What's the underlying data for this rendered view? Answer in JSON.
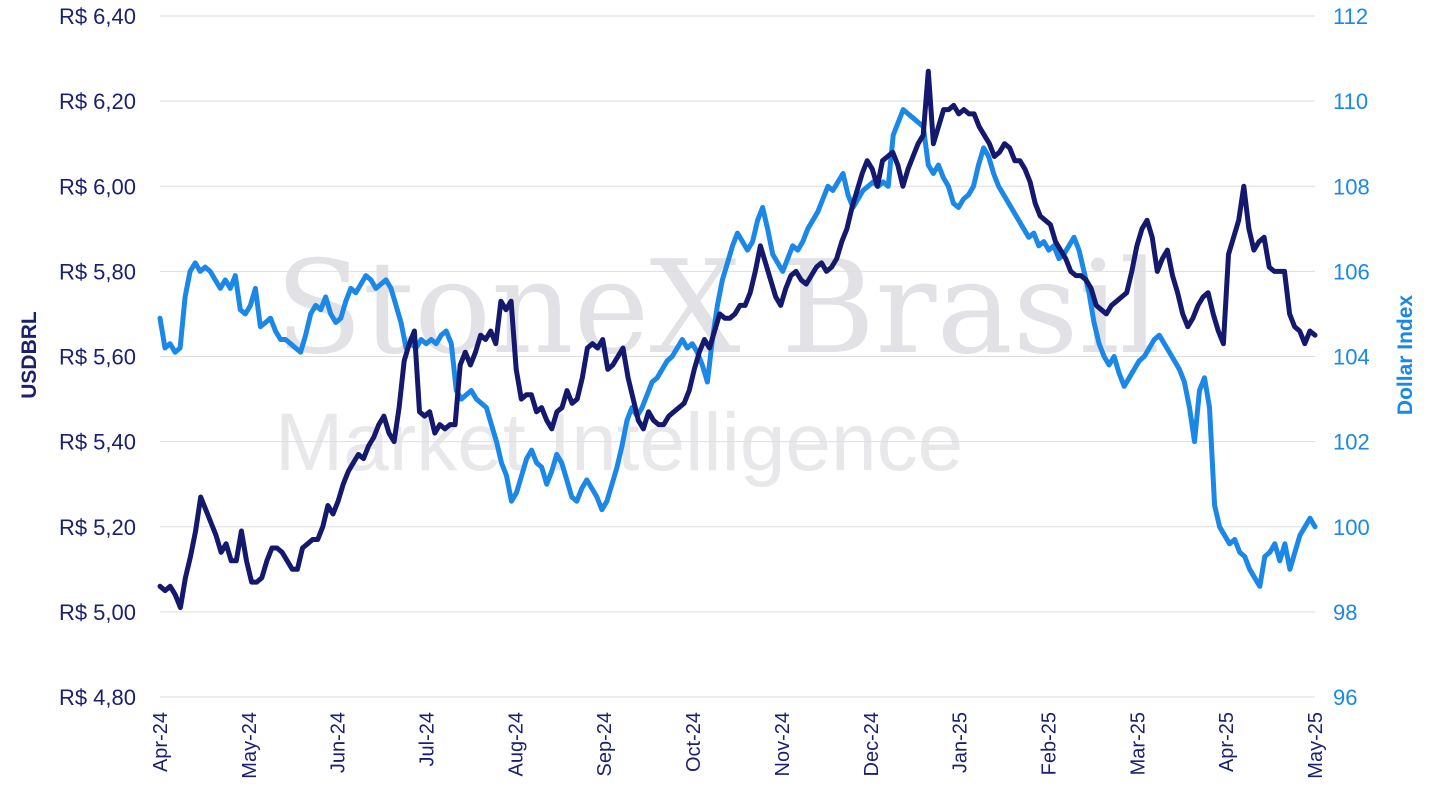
{
  "watermark": {
    "line1": "StoneX Brasil",
    "line2": "Market Intelligence"
  },
  "chart_data": {
    "type": "line",
    "title": "",
    "xlabel": "",
    "ylabel": "USDBRL",
    "y2label": "Dollar Index",
    "ylim": [
      4.8,
      6.4
    ],
    "y2lim": [
      96,
      112
    ],
    "y_ticks": [
      "R$ 4,80",
      "R$ 5,00",
      "R$ 5,20",
      "R$ 5,40",
      "R$ 5,60",
      "R$ 5,80",
      "R$ 6,00",
      "R$ 6,20",
      "R$ 6,40"
    ],
    "y2_ticks": [
      "96",
      "98",
      "100",
      "102",
      "104",
      "106",
      "108",
      "110",
      "112"
    ],
    "x_ticks": [
      "Apr-24",
      "May-24",
      "Jun-24",
      "Jul-24",
      "Aug-24",
      "Sep-24",
      "Oct-24",
      "Nov-24",
      "Dec-24",
      "Jan-25",
      "Feb-25",
      "Mar-25",
      "Apr-25",
      "May-25"
    ],
    "grid": true,
    "legend": "none",
    "colors": {
      "usdbrl": "#14196e",
      "dxy": "#1b87e6"
    },
    "series": [
      {
        "axis": "left",
        "color": "#14196e",
        "values": [
          5.06,
          5.05,
          5.06,
          5.04,
          5.01,
          5.08,
          5.13,
          5.19,
          5.27,
          5.24,
          5.21,
          5.18,
          5.14,
          5.16,
          5.12,
          5.12,
          5.19,
          5.12,
          5.07,
          5.07,
          5.08,
          5.12,
          5.15,
          5.15,
          5.14,
          5.12,
          5.1,
          5.1,
          5.15,
          5.16,
          5.17,
          5.17,
          5.2,
          5.25,
          5.23,
          5.26,
          5.3,
          5.33,
          5.35,
          5.37,
          5.36,
          5.39,
          5.41,
          5.44,
          5.46,
          5.42,
          5.4,
          5.48,
          5.59,
          5.63,
          5.66,
          5.47,
          5.46,
          5.47,
          5.42,
          5.44,
          5.43,
          5.44,
          5.44,
          5.58,
          5.61,
          5.58,
          5.61,
          5.65,
          5.64,
          5.66,
          5.63,
          5.73,
          5.71,
          5.73,
          5.57,
          5.5,
          5.51,
          5.51,
          5.47,
          5.48,
          5.45,
          5.43,
          5.47,
          5.48,
          5.52,
          5.49,
          5.5,
          5.55,
          5.62,
          5.63,
          5.62,
          5.64,
          5.57,
          5.58,
          5.6,
          5.62,
          5.55,
          5.5,
          5.45,
          5.43,
          5.47,
          5.45,
          5.44,
          5.44,
          5.46,
          5.47,
          5.48,
          5.49,
          5.52,
          5.57,
          5.61,
          5.64,
          5.62,
          5.66,
          5.7,
          5.69,
          5.69,
          5.7,
          5.72,
          5.72,
          5.75,
          5.8,
          5.86,
          5.82,
          5.78,
          5.74,
          5.72,
          5.76,
          5.79,
          5.8,
          5.78,
          5.77,
          5.79,
          5.81,
          5.82,
          5.8,
          5.81,
          5.83,
          5.87,
          5.9,
          5.95,
          5.99,
          6.03,
          6.06,
          6.04,
          6.0,
          6.06,
          6.07,
          6.08,
          6.05,
          6.0,
          6.04,
          6.07,
          6.1,
          6.12,
          6.27,
          6.1,
          6.14,
          6.18,
          6.18,
          6.19,
          6.17,
          6.18,
          6.17,
          6.17,
          6.14,
          6.12,
          6.1,
          6.07,
          6.08,
          6.1,
          6.09,
          6.06,
          6.06,
          6.04,
          6.01,
          5.96,
          5.93,
          5.92,
          5.91,
          5.87,
          5.85,
          5.83,
          5.8,
          5.79,
          5.79,
          5.78,
          5.76,
          5.72,
          5.71,
          5.7,
          5.72,
          5.73,
          5.74,
          5.75,
          5.8,
          5.86,
          5.9,
          5.92,
          5.88,
          5.8,
          5.83,
          5.85,
          5.79,
          5.75,
          5.7,
          5.67,
          5.69,
          5.72,
          5.74,
          5.75,
          5.7,
          5.66,
          5.63,
          5.84,
          5.88,
          5.92,
          6.0,
          5.9,
          5.85,
          5.87,
          5.88,
          5.81,
          5.8,
          5.8,
          5.8,
          5.7,
          5.67,
          5.66,
          5.63,
          5.66,
          5.65
        ]
      },
      {
        "axis": "right",
        "color": "#1b87e6",
        "values": [
          104.9,
          104.2,
          104.3,
          104.1,
          104.2,
          105.4,
          106.0,
          106.2,
          106.0,
          106.1,
          106.0,
          105.8,
          105.6,
          105.8,
          105.6,
          105.9,
          105.1,
          105.0,
          105.2,
          105.6,
          104.7,
          104.8,
          104.9,
          104.6,
          104.4,
          104.4,
          104.3,
          104.2,
          104.1,
          104.5,
          105.0,
          105.2,
          105.1,
          105.4,
          105.0,
          104.8,
          104.9,
          105.3,
          105.6,
          105.5,
          105.7,
          105.9,
          105.8,
          105.6,
          105.7,
          105.8,
          105.6,
          105.2,
          104.8,
          104.2,
          104.3,
          104.2,
          104.4,
          104.3,
          104.4,
          104.3,
          104.5,
          104.6,
          104.3,
          103.2,
          103.0,
          103.1,
          103.2,
          103.0,
          102.9,
          102.8,
          102.4,
          102.0,
          101.5,
          101.2,
          100.6,
          100.8,
          101.2,
          101.6,
          101.8,
          101.5,
          101.4,
          101.0,
          101.3,
          101.7,
          101.5,
          101.1,
          100.7,
          100.6,
          100.9,
          101.1,
          100.9,
          100.7,
          100.4,
          100.6,
          101.0,
          101.4,
          101.9,
          102.5,
          102.8,
          102.6,
          102.8,
          103.1,
          103.4,
          103.5,
          103.7,
          103.9,
          104.0,
          104.2,
          104.4,
          104.2,
          104.3,
          104.1,
          103.8,
          103.4,
          104.4,
          105.2,
          105.8,
          106.2,
          106.6,
          106.9,
          106.7,
          106.5,
          106.7,
          107.2,
          107.5,
          107.0,
          106.4,
          106.2,
          106.0,
          106.3,
          106.6,
          106.5,
          106.7,
          107.0,
          107.2,
          107.4,
          107.7,
          108.0,
          107.9,
          108.1,
          108.3,
          107.8,
          107.5,
          107.7,
          107.9,
          108.0,
          108.1,
          108.0,
          108.1,
          108.0,
          109.2,
          109.5,
          109.8,
          109.7,
          109.6,
          109.5,
          109.4,
          108.5,
          108.3,
          108.5,
          108.2,
          108.0,
          107.6,
          107.5,
          107.7,
          107.8,
          108.0,
          108.5,
          108.9,
          108.7,
          108.3,
          108.0,
          107.8,
          107.6,
          107.4,
          107.2,
          107.0,
          106.8,
          106.9,
          106.6,
          106.7,
          106.5,
          106.6,
          106.3,
          106.4,
          106.6,
          106.8,
          106.5,
          106.0,
          105.5,
          104.8,
          104.3,
          104.0,
          103.8,
          104.0,
          103.6,
          103.3,
          103.5,
          103.7,
          103.9,
          104.0,
          104.2,
          104.4,
          104.5,
          104.3,
          104.1,
          103.9,
          103.7,
          103.4,
          102.8,
          102.0,
          103.2,
          103.5,
          102.8,
          100.5,
          100.0,
          99.8,
          99.6,
          99.7,
          99.4,
          99.3,
          99.0,
          98.8,
          98.6,
          99.3,
          99.4,
          99.6,
          99.2,
          99.6,
          99.0,
          99.4,
          99.8,
          100.0,
          100.2,
          100.0
        ]
      }
    ]
  }
}
